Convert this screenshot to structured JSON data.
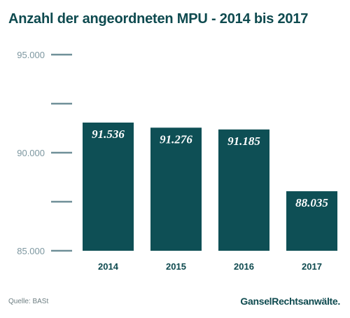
{
  "title": "Anzahl der angeordneten MPU - 2014 bis 2017",
  "source": "Quelle: BASt",
  "logo": {
    "part1": "Gansel",
    "part2": "Rechtsanwälte",
    "dot": "."
  },
  "colors": {
    "bar": "#0e4f55",
    "title": "#0e4a4f",
    "axis": "#6f8f98",
    "tick_text": "#7d97a0",
    "value_text": "#ffffff"
  },
  "chart_data": {
    "type": "bar",
    "title": "Anzahl der angeordneten MPU - 2014 bis 2017",
    "categories": [
      "2014",
      "2015",
      "2016",
      "2017"
    ],
    "values": [
      91536,
      91276,
      91185,
      88035
    ],
    "value_labels": [
      "91.536",
      "91.276",
      "91.185",
      "88.035"
    ],
    "ylim": [
      85000,
      95000
    ],
    "y_ticks": [
      85000,
      87500,
      90000,
      92500,
      95000
    ],
    "y_tick_labels": [
      "85.000",
      "",
      "90.000",
      "",
      "95.000"
    ],
    "xlabel": "",
    "ylabel": "",
    "grid": false,
    "legend": "none"
  }
}
